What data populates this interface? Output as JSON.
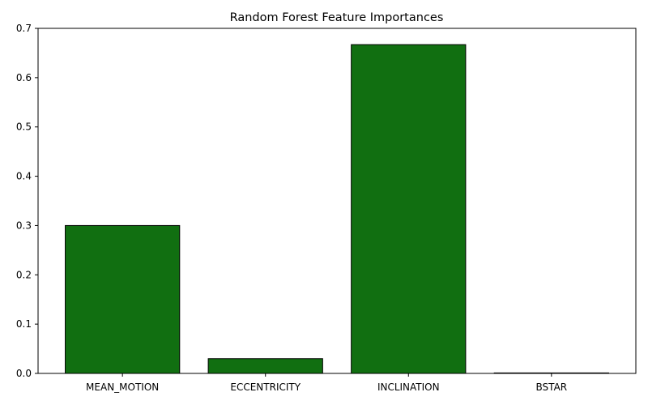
{
  "chart_data": {
    "type": "bar",
    "title": "Random Forest Feature Importances",
    "xlabel": "",
    "ylabel": "",
    "categories": [
      "MEAN_MOTION",
      "ECCENTRICITY",
      "INCLINATION",
      "BSTAR"
    ],
    "values": [
      0.3,
      0.03,
      0.667,
      0.001
    ],
    "ylim": [
      0,
      0.7
    ],
    "yticks": [
      0.0,
      0.1,
      0.2,
      0.3,
      0.4,
      0.5,
      0.6,
      0.7
    ],
    "ytick_labels": [
      "0.0",
      "0.1",
      "0.2",
      "0.3",
      "0.4",
      "0.5",
      "0.6",
      "0.7"
    ],
    "grid": false,
    "bar_color": "#116f11",
    "bar_edge_color": "#000000"
  }
}
